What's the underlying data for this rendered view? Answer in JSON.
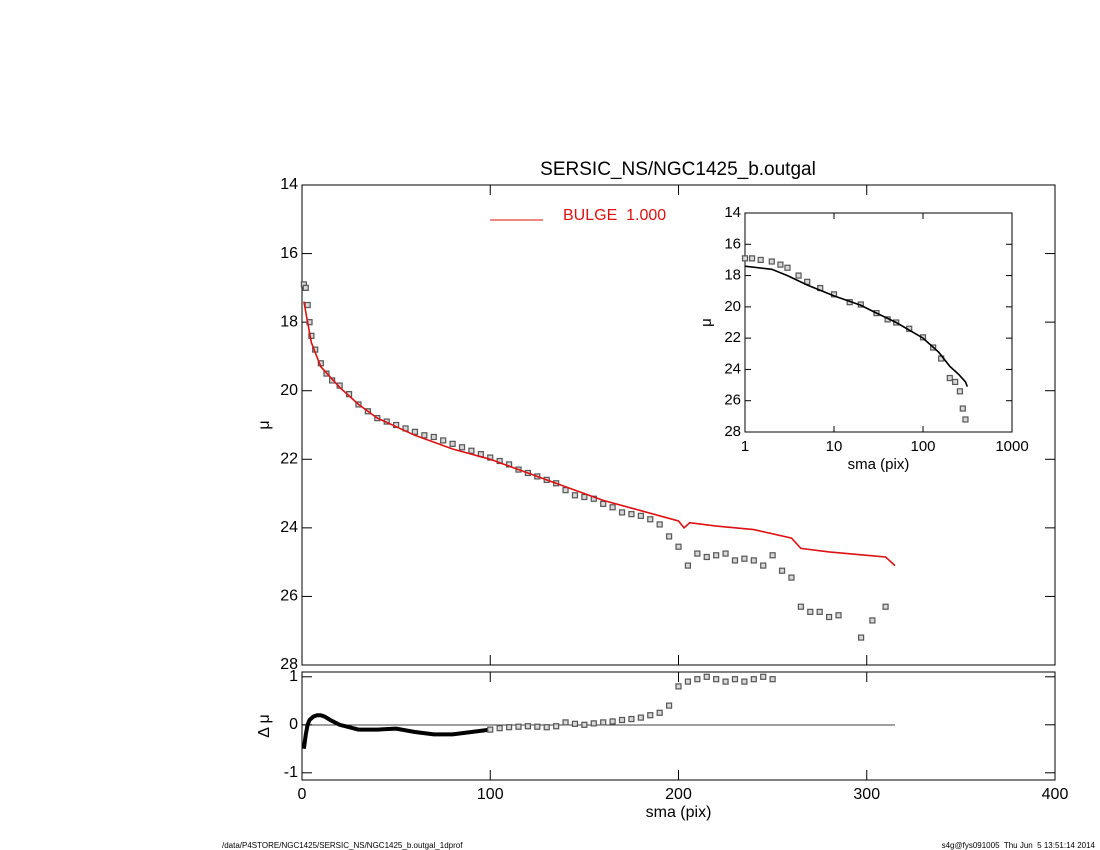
{
  "chart_data": [
    {
      "type": "scatter",
      "title": "SERSIC_NS/NGC1425_b.outgal",
      "ylabel": "μ",
      "xlim": [
        0,
        400
      ],
      "xticks": [
        0,
        100,
        200,
        300,
        400
      ],
      "ylim": [
        28,
        14
      ],
      "yticks": [
        14,
        16,
        18,
        20,
        22,
        24,
        26,
        28
      ],
      "legend": "top",
      "series": [
        {
          "mode": "markers",
          "color": "#888888",
          "x": [
            1,
            2,
            3,
            4,
            5,
            7,
            10,
            13,
            16,
            20,
            25,
            30,
            35,
            40,
            45,
            50,
            55,
            60,
            65,
            70,
            75,
            80,
            85,
            90,
            95,
            100,
            105,
            110,
            115,
            120,
            125,
            130,
            135,
            140,
            145,
            150,
            155,
            160,
            165,
            170,
            175,
            180,
            185,
            190,
            195,
            200,
            205,
            210,
            215,
            220,
            225,
            230,
            235,
            240,
            245,
            250,
            255,
            260,
            265,
            270,
            275,
            280,
            285,
            297,
            303,
            310
          ],
          "values": [
            16.9,
            17.0,
            17.5,
            18.0,
            18.4,
            18.8,
            19.2,
            19.5,
            19.7,
            19.85,
            20.1,
            20.4,
            20.6,
            20.8,
            20.9,
            21.0,
            21.1,
            21.2,
            21.3,
            21.35,
            21.45,
            21.55,
            21.65,
            21.75,
            21.85,
            21.95,
            22.05,
            22.15,
            22.3,
            22.4,
            22.5,
            22.6,
            22.7,
            22.9,
            23.05,
            23.1,
            23.15,
            23.3,
            23.4,
            23.55,
            23.6,
            23.65,
            23.75,
            23.9,
            24.25,
            24.55,
            25.1,
            24.75,
            24.85,
            24.8,
            24.75,
            24.95,
            24.9,
            24.95,
            25.1,
            24.8,
            25.25,
            25.45,
            26.3,
            26.45,
            26.45,
            26.6,
            26.55,
            27.2,
            26.7,
            26.3
          ]
        },
        {
          "mode": "line",
          "name": "BULGE  1.000",
          "color": "#dd1111",
          "x": [
            1,
            3,
            5,
            10,
            20,
            30,
            40,
            60,
            80,
            100,
            120,
            140,
            160,
            180,
            200,
            203,
            206,
            220,
            240,
            260,
            265,
            280,
            300,
            310,
            315
          ],
          "values": [
            17.4,
            18.0,
            18.6,
            19.3,
            19.9,
            20.4,
            20.8,
            21.3,
            21.7,
            22.0,
            22.4,
            22.8,
            23.2,
            23.5,
            23.8,
            24.0,
            23.85,
            23.95,
            24.05,
            24.3,
            24.6,
            24.7,
            24.8,
            24.85,
            25.1
          ]
        }
      ]
    },
    {
      "type": "scatter",
      "ylabel": "Δ μ",
      "xlabel": "sma (pix)",
      "xlim": [
        0,
        400
      ],
      "xticks": [
        0,
        100,
        200,
        300,
        400
      ],
      "ylim": [
        -1.15,
        1.1
      ],
      "yticks": [
        -1,
        0,
        1
      ],
      "series": [
        {
          "mode": "line",
          "color": "#000000",
          "x": [
            1,
            2,
            3,
            4,
            6,
            8,
            10,
            12,
            15,
            20,
            25,
            30,
            40,
            50,
            60,
            70,
            80,
            90,
            100
          ],
          "values": [
            -0.5,
            -0.2,
            0.0,
            0.1,
            0.17,
            0.2,
            0.2,
            0.17,
            0.1,
            0.0,
            -0.05,
            -0.1,
            -0.1,
            -0.08,
            -0.15,
            -0.2,
            -0.2,
            -0.15,
            -0.1
          ]
        },
        {
          "mode": "markers",
          "color": "#888888",
          "x": [
            100,
            105,
            110,
            115,
            120,
            125,
            130,
            135,
            140,
            145,
            150,
            155,
            160,
            165,
            170,
            175,
            180,
            185,
            190,
            195,
            200,
            205,
            210,
            215,
            220,
            225,
            230,
            235,
            240,
            245,
            250
          ],
          "values": [
            -0.1,
            -0.07,
            -0.05,
            -0.04,
            -0.03,
            -0.04,
            -0.05,
            -0.03,
            0.05,
            0.02,
            0.0,
            0.03,
            0.05,
            0.07,
            0.1,
            0.12,
            0.15,
            0.2,
            0.25,
            0.4,
            0.8,
            0.9,
            0.95,
            1.0,
            0.95,
            0.9,
            0.95,
            0.9,
            0.95,
            1.0,
            0.95
          ]
        }
      ]
    },
    {
      "type": "scatter",
      "ylabel": "μ",
      "xlabel": "sma (pix)",
      "xlog": true,
      "xlim": [
        1,
        1000
      ],
      "xticks": [
        1,
        10,
        100,
        1000
      ],
      "ylim": [
        28,
        14
      ],
      "yticks": [
        14,
        16,
        18,
        20,
        22,
        24,
        26,
        28
      ],
      "series": [
        {
          "mode": "markers",
          "color": "#888888",
          "x": [
            1,
            1.2,
            1.5,
            2,
            2.5,
            3,
            4,
            5,
            7,
            10,
            15,
            20,
            30,
            40,
            50,
            70,
            100,
            130,
            160,
            200,
            230,
            260,
            280,
            300
          ],
          "values": [
            16.9,
            16.9,
            17.0,
            17.1,
            17.3,
            17.5,
            18.0,
            18.4,
            18.8,
            19.2,
            19.7,
            19.85,
            20.4,
            20.8,
            21.0,
            21.4,
            21.95,
            22.6,
            23.3,
            24.55,
            24.8,
            25.4,
            26.5,
            27.2
          ]
        },
        {
          "mode": "line",
          "color": "#000000",
          "x": [
            1,
            2,
            3,
            5,
            10,
            20,
            30,
            50,
            100,
            150,
            200,
            250,
            300,
            315
          ],
          "values": [
            17.4,
            17.6,
            18.0,
            18.6,
            19.3,
            19.9,
            20.4,
            21.0,
            22.0,
            22.9,
            23.8,
            24.3,
            24.8,
            25.1
          ]
        }
      ]
    }
  ],
  "footer": {
    "path": "/data/P4STORE/NGC1425/SERSIC_NS/NGC1425_b.outgal_1dprof",
    "stamp": "s4g@fys091005  Thu Jun  5 13:51:14 2014"
  }
}
